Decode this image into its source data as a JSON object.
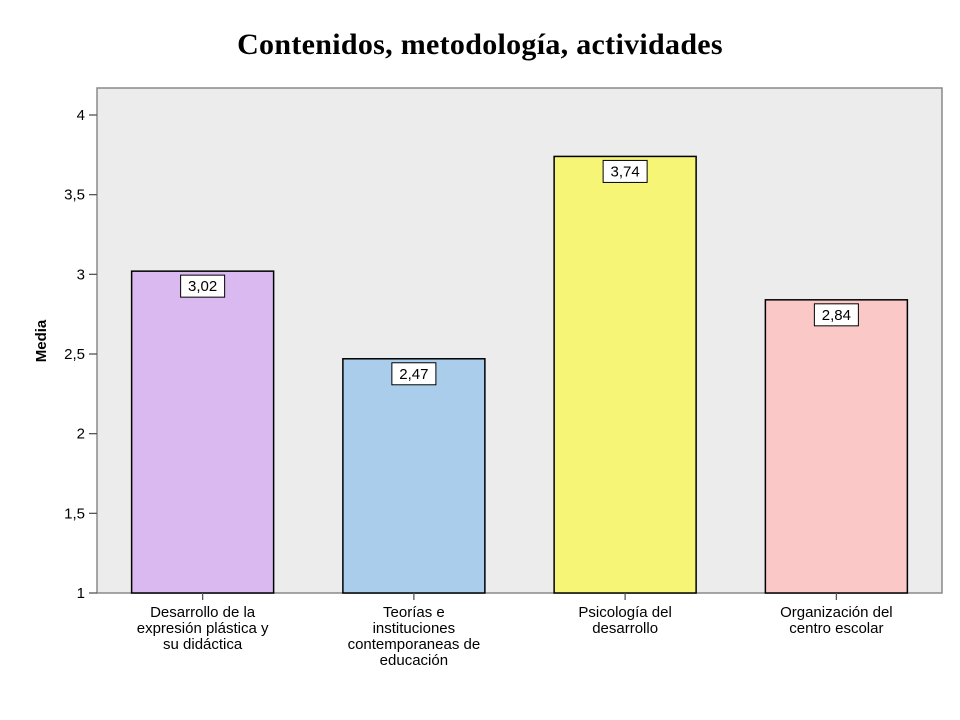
{
  "chart_data": {
    "type": "bar",
    "title": "Contenidos, metodología, actividades",
    "ylabel": "Media",
    "xlabel": "",
    "ylim": [
      1,
      4
    ],
    "y_ticks": [
      "1",
      "1,5",
      "2",
      "2,5",
      "3",
      "3,5",
      "4"
    ],
    "categories": [
      [
        "Desarrollo de la",
        "expresión plástica y",
        "su didáctica"
      ],
      [
        "Teorías e",
        "instituciones",
        "contemporaneas de",
        "educación"
      ],
      [
        "Psicología del",
        "desarrollo"
      ],
      [
        "Organización del",
        "centro escolar"
      ]
    ],
    "values": [
      3.02,
      2.47,
      3.74,
      2.84
    ],
    "value_labels": [
      "3,02",
      "2,47",
      "3,74",
      "2,84"
    ],
    "colors": [
      "#dab8f0",
      "#a9cdeb",
      "#f7f576",
      "#fbc8c8"
    ],
    "plot_background": "#ececec",
    "grid": false
  }
}
